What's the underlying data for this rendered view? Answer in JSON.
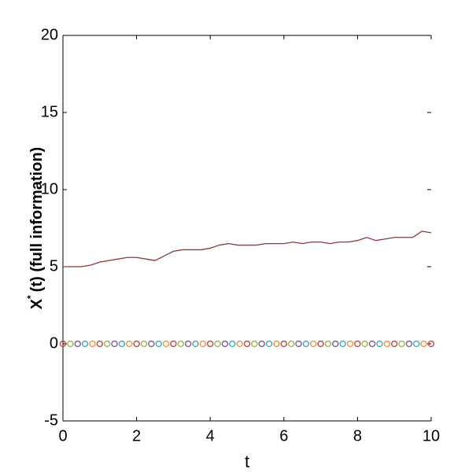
{
  "chart_data": {
    "type": "line",
    "xlabel": "t",
    "ylabel": {
      "base": "X",
      "sup": "*",
      "rest": "(t) (full information)"
    },
    "xlim": [
      0,
      10
    ],
    "xticks": [
      0,
      2,
      4,
      6,
      8,
      10
    ],
    "ylim": [
      -5,
      20
    ],
    "yticks": [
      -5,
      0,
      5,
      10,
      15,
      20
    ],
    "series": [
      {
        "kind": "line",
        "color": "#8b3a3a",
        "x": [
          0,
          0.25,
          0.5,
          0.75,
          1,
          1.25,
          1.5,
          1.75,
          2,
          2.25,
          2.5,
          2.75,
          3,
          3.25,
          3.5,
          3.75,
          4,
          4.25,
          4.5,
          4.75,
          5,
          5.25,
          5.5,
          5.75,
          6,
          6.25,
          6.5,
          6.75,
          7,
          7.25,
          7.5,
          7.75,
          8,
          8.25,
          8.5,
          8.75,
          9,
          9.25,
          9.5,
          9.75,
          10
        ],
        "values": [
          5.0,
          5.0,
          5.0,
          5.1,
          5.3,
          5.4,
          5.5,
          5.6,
          5.6,
          5.5,
          5.4,
          5.7,
          6.0,
          6.1,
          6.1,
          6.1,
          6.2,
          6.4,
          6.5,
          6.4,
          6.4,
          6.4,
          6.5,
          6.5,
          6.5,
          6.6,
          6.5,
          6.6,
          6.6,
          6.5,
          6.6,
          6.6,
          6.7,
          6.9,
          6.7,
          6.8,
          6.9,
          6.9,
          6.9,
          7.3,
          7.2
        ]
      },
      {
        "kind": "markers",
        "colors": [
          "#c0504d",
          "#9bbb59",
          "#8064a2",
          "#4bacc6",
          "#f79646"
        ],
        "x": [
          0,
          0.2,
          0.4,
          0.6,
          0.8,
          1,
          1.2,
          1.4,
          1.6,
          1.8,
          2,
          2.2,
          2.4,
          2.6,
          2.8,
          3,
          3.2,
          3.4,
          3.6,
          3.8,
          4,
          4.2,
          4.4,
          4.6,
          4.8,
          5,
          5.2,
          5.4,
          5.6,
          5.8,
          6,
          6.2,
          6.4,
          6.6,
          6.8,
          7,
          7.2,
          7.4,
          7.6,
          7.8,
          8,
          8.2,
          8.4,
          8.6,
          8.8,
          9,
          9.2,
          9.4,
          9.6,
          9.8,
          10
        ],
        "values": [
          0,
          0,
          0,
          0,
          0,
          0,
          0,
          0,
          0,
          0,
          0,
          0,
          0,
          0,
          0,
          0,
          0,
          0,
          0,
          0,
          0,
          0,
          0,
          0,
          0,
          0,
          0,
          0,
          0,
          0,
          0,
          0,
          0,
          0,
          0,
          0,
          0,
          0,
          0,
          0,
          0,
          0,
          0,
          0,
          0,
          0,
          0,
          0,
          0,
          0,
          0
        ]
      }
    ]
  }
}
